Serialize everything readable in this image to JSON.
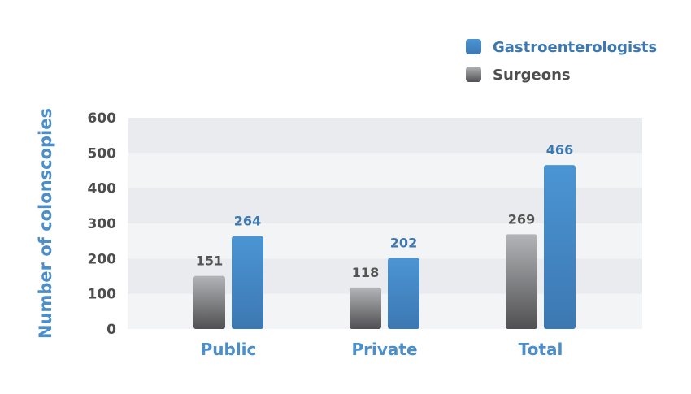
{
  "chart_data": {
    "type": "bar",
    "title": "",
    "xlabel": "",
    "ylabel": "Number of colonscopies",
    "categories": [
      "Public",
      "Private",
      "Total"
    ],
    "ylim": [
      0,
      600
    ],
    "yticks": [
      0,
      100,
      200,
      300,
      400,
      500,
      600
    ],
    "grid": "alternating horizontal bands",
    "legend_position": "top-right",
    "series": [
      {
        "name": "Surgeons",
        "values": [
          151,
          118,
          269
        ],
        "color": "#6f6f72"
      },
      {
        "name": "Gastroenterologists",
        "values": [
          264,
          202,
          466
        ],
        "color": "#3f86c6"
      }
    ],
    "legend_order": [
      "Gastroenterologists",
      "Surgeons"
    ]
  },
  "colors": {
    "accent": "#4b8ec8",
    "band_dark": "#e9ebee",
    "band_light": "#f3f4f6",
    "surgeon_label": "#555555",
    "gastro_label": "#3d78b0"
  }
}
